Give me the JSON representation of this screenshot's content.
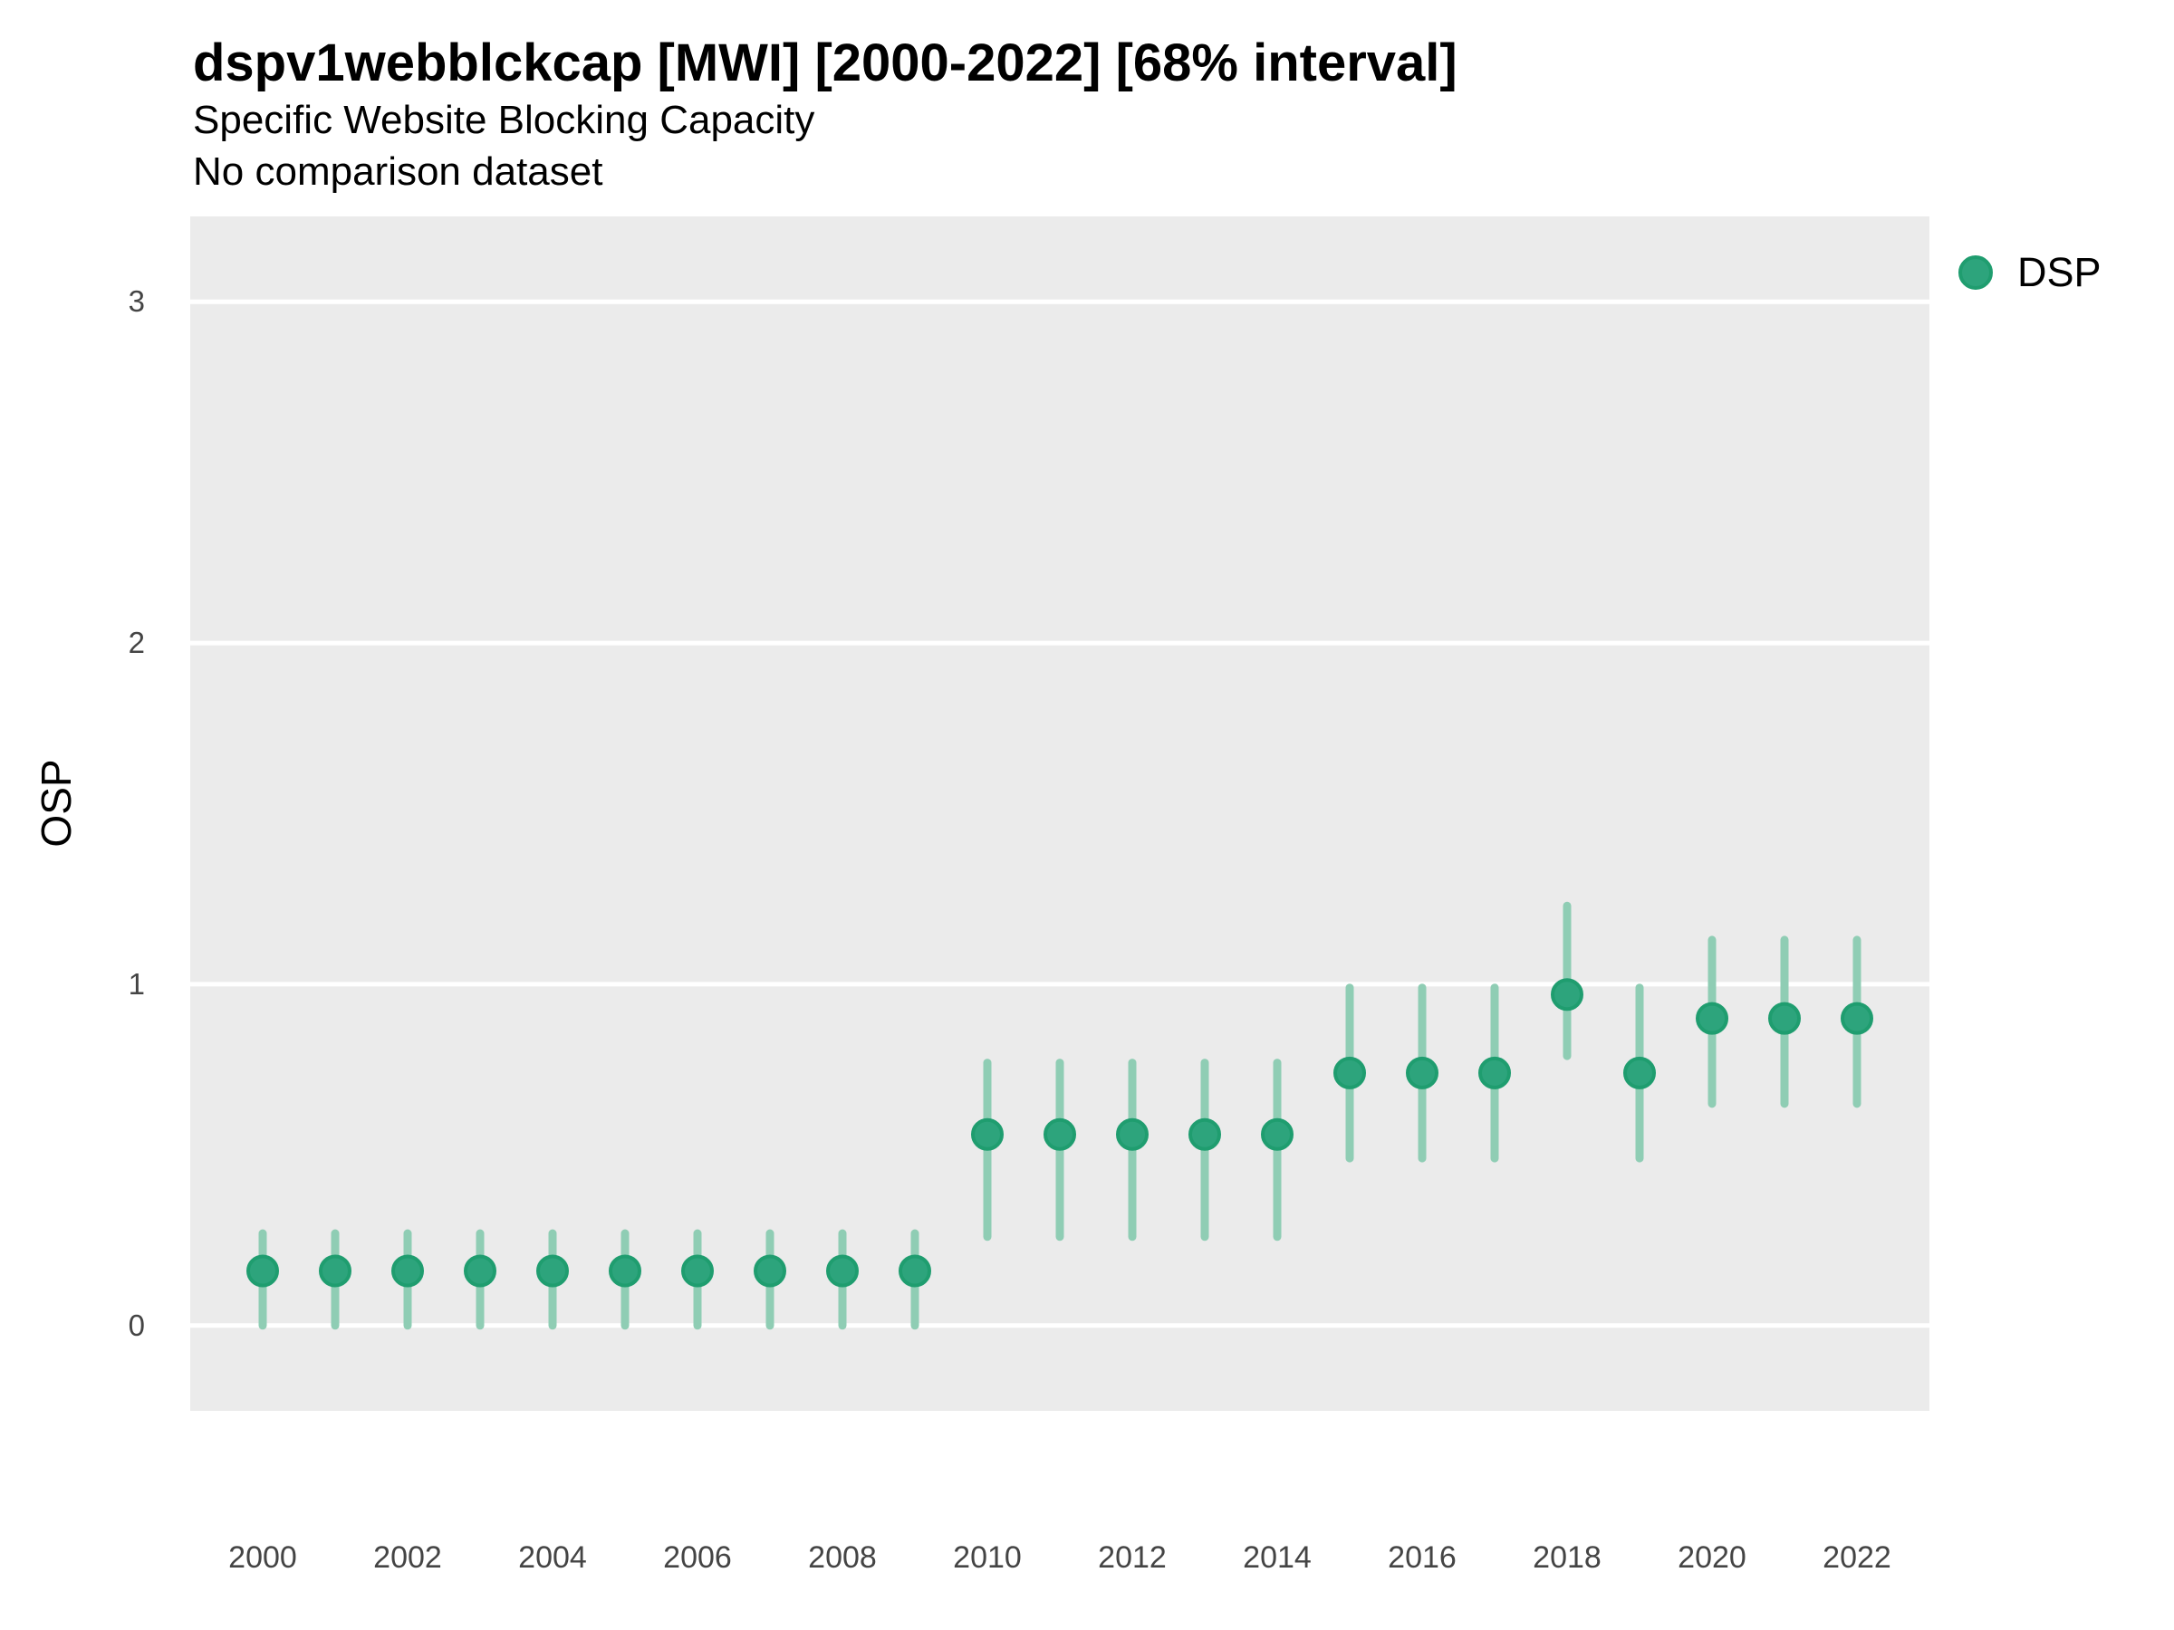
{
  "header": {
    "title": "dspv1webblckcap [MWI] [2000-2022] [68% interval]",
    "subtitle": "Specific Website Blocking Capacity",
    "comparison_note": "No comparison dataset"
  },
  "axes": {
    "y_label": "OSP"
  },
  "legend": {
    "items": [
      {
        "label": "DSP",
        "color": "#2DA47C"
      }
    ]
  },
  "colors": {
    "panel_background": "#EBEBEB",
    "gridline": "#FFFFFF",
    "point_fill": "#2DA47C",
    "point_stroke": "#1F9D6F",
    "interval_bar": "#8FCDB4",
    "tick_text": "#444444",
    "text": "#000000"
  },
  "chart_data": {
    "type": "scatter",
    "subtype": "pointrange",
    "title": "dspv1webblckcap [MWI] [2000-2022] [68% interval]",
    "subtitle": "Specific Website Blocking Capacity",
    "note": "No comparison dataset",
    "interval": "68%",
    "xlabel": "",
    "ylabel": "OSP",
    "x_range": [
      1999,
      2023
    ],
    "y_range": [
      -0.25,
      3.25
    ],
    "x_ticks": [
      2000,
      2002,
      2004,
      2006,
      2008,
      2010,
      2012,
      2014,
      2016,
      2018,
      2020,
      2022
    ],
    "y_ticks": [
      0,
      1,
      2,
      3
    ],
    "grid": "horizontal-only",
    "legend_position": "right-top",
    "series": [
      {
        "name": "DSP",
        "color": "#2DA47C",
        "points": [
          {
            "year": 2000,
            "value": 0.16,
            "lo": 0.0,
            "hi": 0.27
          },
          {
            "year": 2001,
            "value": 0.16,
            "lo": 0.0,
            "hi": 0.27
          },
          {
            "year": 2002,
            "value": 0.16,
            "lo": 0.0,
            "hi": 0.27
          },
          {
            "year": 2003,
            "value": 0.16,
            "lo": 0.0,
            "hi": 0.27
          },
          {
            "year": 2004,
            "value": 0.16,
            "lo": 0.0,
            "hi": 0.27
          },
          {
            "year": 2005,
            "value": 0.16,
            "lo": 0.0,
            "hi": 0.27
          },
          {
            "year": 2006,
            "value": 0.16,
            "lo": 0.0,
            "hi": 0.27
          },
          {
            "year": 2007,
            "value": 0.16,
            "lo": 0.0,
            "hi": 0.27
          },
          {
            "year": 2008,
            "value": 0.16,
            "lo": 0.0,
            "hi": 0.27
          },
          {
            "year": 2009,
            "value": 0.16,
            "lo": 0.0,
            "hi": 0.27
          },
          {
            "year": 2010,
            "value": 0.56,
            "lo": 0.26,
            "hi": 0.77
          },
          {
            "year": 2011,
            "value": 0.56,
            "lo": 0.26,
            "hi": 0.77
          },
          {
            "year": 2012,
            "value": 0.56,
            "lo": 0.26,
            "hi": 0.77
          },
          {
            "year": 2013,
            "value": 0.56,
            "lo": 0.26,
            "hi": 0.77
          },
          {
            "year": 2014,
            "value": 0.56,
            "lo": 0.26,
            "hi": 0.77
          },
          {
            "year": 2015,
            "value": 0.74,
            "lo": 0.49,
            "hi": 0.99
          },
          {
            "year": 2016,
            "value": 0.74,
            "lo": 0.49,
            "hi": 0.99
          },
          {
            "year": 2017,
            "value": 0.74,
            "lo": 0.49,
            "hi": 0.99
          },
          {
            "year": 2018,
            "value": 0.97,
            "lo": 0.79,
            "hi": 1.23
          },
          {
            "year": 2019,
            "value": 0.74,
            "lo": 0.49,
            "hi": 0.99
          },
          {
            "year": 2020,
            "value": 0.9,
            "lo": 0.65,
            "hi": 1.13
          },
          {
            "year": 2021,
            "value": 0.9,
            "lo": 0.65,
            "hi": 1.13
          },
          {
            "year": 2022,
            "value": 0.9,
            "lo": 0.65,
            "hi": 1.13
          }
        ]
      }
    ]
  }
}
